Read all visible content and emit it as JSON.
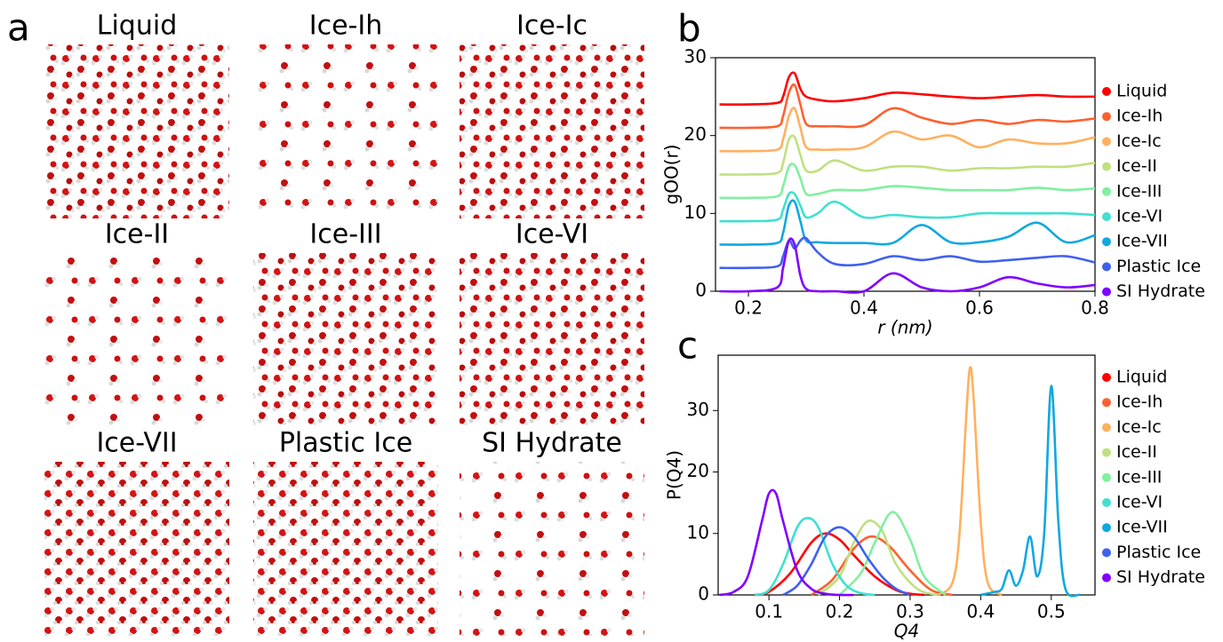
{
  "panel_a": {
    "label": "a",
    "titles": [
      "Liquid",
      "Ice-Ih",
      "Ice-Ic",
      "Ice-II",
      "Ice-III",
      "Ice-VI",
      "Ice-VII",
      "Plastic Ice",
      "SI Hydrate"
    ]
  },
  "chart_data": [
    {
      "type": "line",
      "panel_label": "b",
      "xlabel": "r (nm)",
      "ylabel": "gOO(r)",
      "xlim": [
        0.143,
        0.8
      ],
      "ylim": [
        0,
        30
      ],
      "xticks": [
        0.2,
        0.4,
        0.6,
        0.8
      ],
      "yticks": [
        0,
        10,
        20,
        30
      ],
      "x": [
        0.15,
        0.2,
        0.25,
        0.26,
        0.27,
        0.28,
        0.29,
        0.3,
        0.32,
        0.35,
        0.4,
        0.45,
        0.5,
        0.55,
        0.6,
        0.65,
        0.7,
        0.75,
        0.8
      ],
      "series": [
        {
          "name": "Liquid",
          "color": "#ff0000",
          "values": [
            24,
            24,
            24.2,
            25,
            27.5,
            28,
            26,
            25,
            24.6,
            24.4,
            24.8,
            25.5,
            25.3,
            25,
            24.8,
            25,
            25.2,
            25,
            25
          ]
        },
        {
          "name": "Ice-Ih",
          "color": "#ff6030",
          "values": [
            21,
            21,
            21.2,
            22.5,
            25.5,
            26.5,
            24,
            21.5,
            21.2,
            21.2,
            21.3,
            23.5,
            22.3,
            21.5,
            22,
            21.5,
            22,
            21.8,
            22.2
          ]
        },
        {
          "name": "Ice-Ic",
          "color": "#ffb060",
          "values": [
            18,
            18,
            18.2,
            19.5,
            22.5,
            23.5,
            21,
            18.5,
            18.2,
            18.2,
            18.5,
            20.5,
            19.5,
            20,
            18.5,
            19.5,
            19,
            19,
            19.8
          ]
        },
        {
          "name": "Ice-II",
          "color": "#c0e080",
          "values": [
            15,
            15,
            15.2,
            16.5,
            19.5,
            19.8,
            17.5,
            15.5,
            15.5,
            16.8,
            15.5,
            16,
            16,
            15.5,
            15.8,
            15.8,
            16,
            16,
            16.5
          ]
        },
        {
          "name": "Ice-III",
          "color": "#80f0a0",
          "values": [
            12,
            12,
            12.2,
            13.5,
            16,
            16.2,
            14.5,
            12.5,
            12.5,
            13,
            13,
            13.5,
            13.3,
            13,
            13,
            13,
            13.3,
            13,
            13.2
          ]
        },
        {
          "name": "Ice-VI",
          "color": "#40e0d0",
          "values": [
            9,
            9,
            9.2,
            10.5,
            12.5,
            12.5,
            11,
            9.5,
            10,
            11.5,
            9.5,
            9.8,
            9.5,
            9.5,
            10,
            10,
            10,
            10,
            9.8
          ]
        },
        {
          "name": "Ice-VII",
          "color": "#10a8e0",
          "values": [
            6,
            6,
            6.2,
            7.5,
            11,
            11.5,
            9,
            6.5,
            6.3,
            6.2,
            6.2,
            6.2,
            8.5,
            6.3,
            6.3,
            7,
            8.8,
            6.3,
            7.2
          ]
        },
        {
          "name": "Plastic Ice",
          "color": "#4060f0",
          "values": [
            3,
            3,
            3.2,
            4.5,
            6.5,
            5.5,
            6.5,
            6.8,
            5,
            3.5,
            3.5,
            4.5,
            4,
            4.5,
            3.8,
            4,
            4.3,
            4.5,
            3.7
          ]
        },
        {
          "name": "SI Hydrate",
          "color": "#8000ff",
          "values": [
            0,
            0,
            0.5,
            3,
            6.5,
            6,
            2,
            0.3,
            0,
            0,
            0,
            2.3,
            0.5,
            0,
            0.5,
            1.8,
            1,
            0.5,
            0.8
          ]
        }
      ]
    },
    {
      "type": "line",
      "panel_label": "c",
      "xlabel": "Q4",
      "ylabel": "P(Q4)",
      "xlim": [
        0.028,
        0.562
      ],
      "ylim": [
        0,
        39
      ],
      "xticks": [
        0.1,
        0.2,
        0.3,
        0.4,
        0.5
      ],
      "yticks": [
        0,
        10,
        20,
        30
      ],
      "series": [
        {
          "name": "Liquid",
          "color": "#ff0000",
          "x": [
            0.08,
            0.1,
            0.13,
            0.16,
            0.18,
            0.2,
            0.22,
            0.25,
            0.28,
            0.3,
            0.32
          ],
          "values": [
            0,
            0.5,
            3.5,
            8.5,
            10,
            9,
            6.5,
            3,
            0.8,
            0.2,
            0
          ]
        },
        {
          "name": "Ice-Ih",
          "color": "#ff6030",
          "x": [
            0.16,
            0.19,
            0.22,
            0.245,
            0.27,
            0.3,
            0.33,
            0.36
          ],
          "values": [
            0,
            2.5,
            7.5,
            9.5,
            8,
            4,
            0.8,
            0
          ]
        },
        {
          "name": "Ice-Ic",
          "color": "#ffb060",
          "x": [
            0.34,
            0.36,
            0.37,
            0.38,
            0.385,
            0.39,
            0.4,
            0.41,
            0.43
          ],
          "values": [
            0,
            2,
            10,
            30,
            37,
            32,
            12,
            2,
            0
          ]
        },
        {
          "name": "Ice-II",
          "color": "#c0e080",
          "x": [
            0.17,
            0.2,
            0.22,
            0.24,
            0.26,
            0.28,
            0.31,
            0.34
          ],
          "values": [
            0,
            3,
            8.5,
            12,
            10.5,
            5,
            1,
            0
          ]
        },
        {
          "name": "Ice-III",
          "color": "#80f0a0",
          "x": [
            0.2,
            0.23,
            0.25,
            0.275,
            0.3,
            0.32,
            0.35
          ],
          "values": [
            0,
            3.5,
            8.5,
            13.5,
            9,
            3,
            0
          ]
        },
        {
          "name": "Ice-VI",
          "color": "#40e0d0",
          "x": [
            0.08,
            0.1,
            0.12,
            0.14,
            0.155,
            0.17,
            0.19,
            0.21,
            0.23,
            0.25
          ],
          "values": [
            0,
            0.8,
            5,
            11,
            12.5,
            11,
            5,
            1.5,
            0.3,
            0
          ]
        },
        {
          "name": "Ice-VII",
          "color": "#10a8e0",
          "x": [
            0.4,
            0.42,
            0.43,
            0.44,
            0.45,
            0.46,
            0.47,
            0.48,
            0.49,
            0.5,
            0.51,
            0.52,
            0.54
          ],
          "values": [
            0,
            0.5,
            1,
            4,
            1.5,
            4,
            9.5,
            3,
            10,
            34,
            12,
            1,
            0
          ]
        },
        {
          "name": "Plastic Ice",
          "color": "#4060f0",
          "x": [
            0.12,
            0.14,
            0.16,
            0.18,
            0.2,
            0.22,
            0.24,
            0.26,
            0.28,
            0.3
          ],
          "values": [
            0,
            1.5,
            5,
            9.5,
            11,
            9.5,
            6,
            3,
            1,
            0
          ]
        },
        {
          "name": "SI Hydrate",
          "color": "#8000ff",
          "x": [
            0.03,
            0.05,
            0.07,
            0.09,
            0.1,
            0.11,
            0.12,
            0.14,
            0.16,
            0.18,
            0.2,
            0.22
          ],
          "values": [
            0,
            0.5,
            3,
            12,
            16.5,
            16.5,
            12,
            4,
            1,
            0.2,
            0,
            0
          ]
        }
      ]
    }
  ]
}
